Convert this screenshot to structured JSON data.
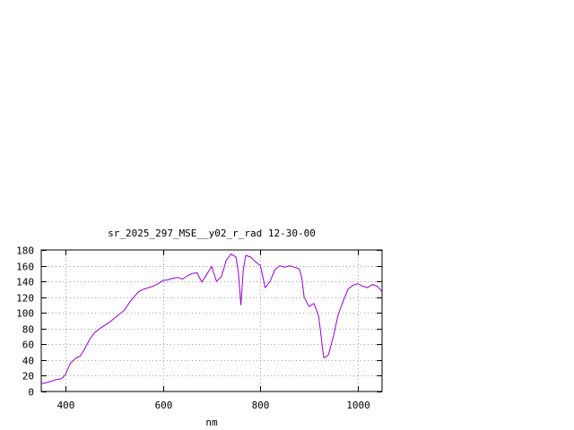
{
  "chart_data": {
    "type": "line",
    "title": "sr_2025_297_MSE__y02_r_rad 12-30-00",
    "xlabel": "nm",
    "ylabel": "",
    "xlim": [
      350,
      1050
    ],
    "ylim": [
      0,
      180
    ],
    "xticks": [
      400,
      600,
      800,
      1000
    ],
    "yticks": [
      0,
      20,
      40,
      60,
      80,
      100,
      120,
      140,
      160,
      180
    ],
    "grid": true,
    "legend": "none",
    "series": [
      {
        "color": "#9400d3",
        "x": [
          350,
          360,
          370,
          380,
          390,
          395,
          400,
          410,
          420,
          430,
          440,
          450,
          460,
          470,
          480,
          490,
          500,
          510,
          520,
          530,
          540,
          550,
          560,
          570,
          580,
          590,
          600,
          610,
          620,
          630,
          640,
          650,
          660,
          670,
          680,
          690,
          700,
          710,
          720,
          730,
          740,
          750,
          755,
          760,
          765,
          770,
          780,
          790,
          800,
          810,
          820,
          830,
          840,
          850,
          860,
          870,
          880,
          885,
          890,
          900,
          910,
          915,
          920,
          925,
          930,
          935,
          940,
          950,
          960,
          970,
          980,
          990,
          1000,
          1010,
          1020,
          1030,
          1040,
          1050
        ],
        "y": [
          10,
          11,
          13,
          15,
          16,
          18,
          22,
          36,
          42,
          45,
          55,
          67,
          75,
          80,
          84,
          88,
          93,
          98,
          103,
          112,
          120,
          127,
          130,
          132,
          134,
          137,
          141,
          142,
          144,
          145,
          143,
          147,
          150,
          151,
          139,
          149,
          159,
          140,
          146,
          167,
          175,
          171,
          150,
          110,
          155,
          173,
          171,
          165,
          160,
          132,
          140,
          155,
          160,
          158,
          160,
          158,
          156,
          145,
          120,
          108,
          112,
          104,
          95,
          70,
          43,
          44,
          47,
          70,
          98,
          115,
          130,
          135,
          137,
          134,
          132,
          136,
          134,
          127
        ]
      }
    ]
  }
}
